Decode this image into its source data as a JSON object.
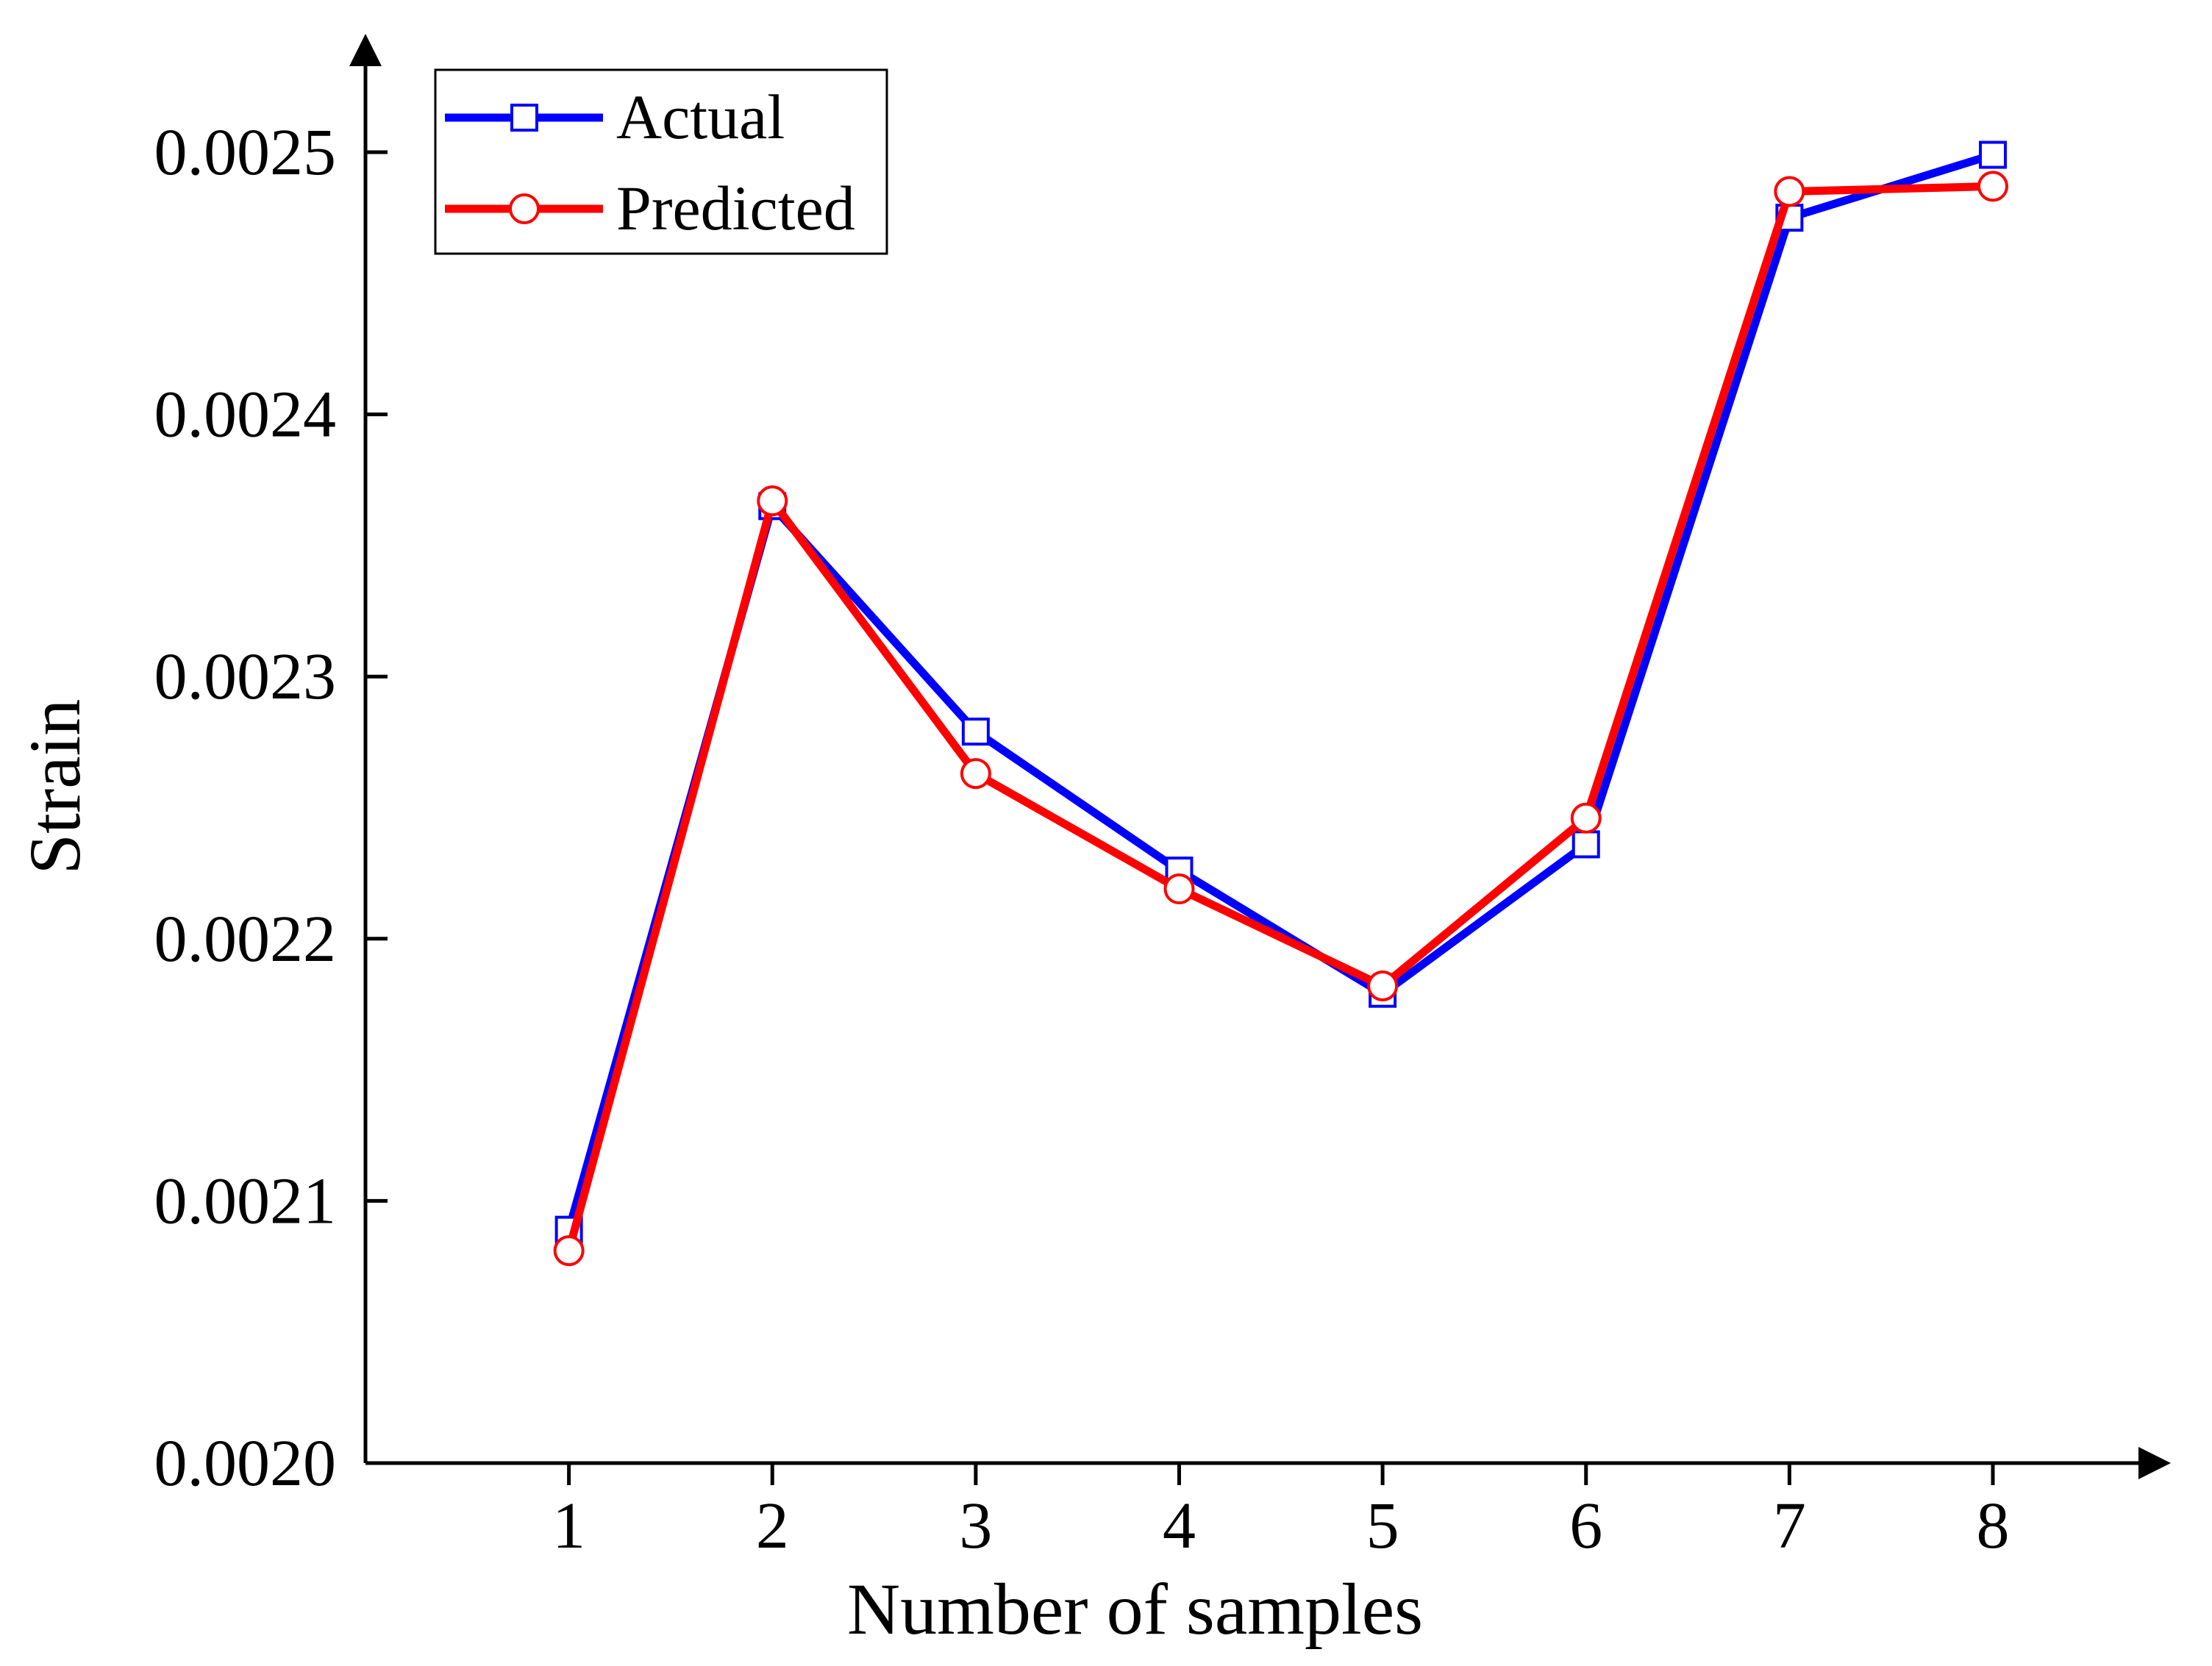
{
  "chart_data": {
    "type": "line",
    "title": "",
    "xlabel": "Number of samples",
    "ylabel": "Strain",
    "categories": [
      "1",
      "2",
      "3",
      "4",
      "5",
      "6",
      "7",
      "8"
    ],
    "x": [
      1,
      2,
      3,
      4,
      5,
      6,
      7,
      8
    ],
    "xlim": [
      0,
      8.9
    ],
    "ylim": [
      0.002,
      0.00255
    ],
    "yticks": [
      0.002,
      0.0021,
      0.0022,
      0.0023,
      0.0024,
      0.0025
    ],
    "ytick_labels": [
      "0.0020",
      "0.0021",
      "0.0022",
      "0.0023",
      "0.0024",
      "0.0025"
    ],
    "grid": false,
    "legend_position": "top-left",
    "series": [
      {
        "name": "Actual",
        "color": "#0000ff",
        "marker": "square",
        "values": [
          0.002089,
          0.002365,
          0.002279,
          0.002226,
          0.002179,
          0.002236,
          0.002475,
          0.002499
        ]
      },
      {
        "name": "Predicted",
        "color": "#ff0000",
        "marker": "circle",
        "values": [
          0.002081,
          0.002367,
          0.002263,
          0.002219,
          0.002182,
          0.002246,
          0.002485,
          0.002487
        ]
      }
    ]
  }
}
